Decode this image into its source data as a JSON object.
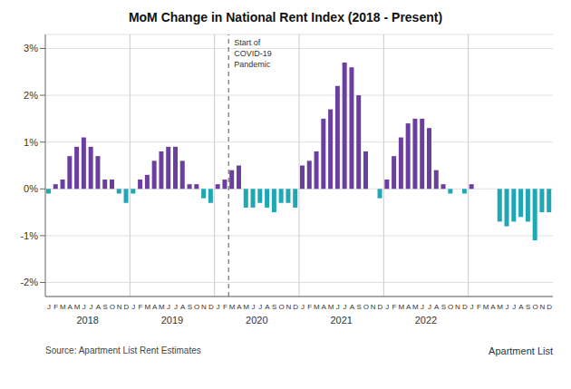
{
  "chart_data": {
    "type": "bar",
    "title": "MoM Change in National Rent Index (2018 - Present)",
    "categories": [
      "J",
      "F",
      "M",
      "A",
      "M",
      "J",
      "J",
      "A",
      "S",
      "O",
      "N",
      "D",
      "J",
      "F",
      "M",
      "A",
      "M",
      "J",
      "J",
      "A",
      "S",
      "O",
      "N",
      "D",
      "J",
      "F",
      "M",
      "A",
      "M",
      "J",
      "J",
      "A",
      "S",
      "O",
      "N",
      "D",
      "J",
      "F",
      "M",
      "A",
      "M",
      "J",
      "J",
      "A",
      "S",
      "O",
      "N",
      "D",
      "J",
      "F",
      "M",
      "A",
      "M",
      "J",
      "J",
      "A",
      "S",
      "O",
      "N",
      "D",
      "J",
      "F",
      "M",
      "A",
      "M",
      "J",
      "J",
      "A",
      "S",
      "O",
      "N",
      "D"
    ],
    "values": [
      -0.001,
      0.001,
      0.002,
      0.007,
      0.009,
      0.011,
      0.009,
      0.007,
      0.002,
      0.002,
      -0.001,
      -0.003,
      -0.001,
      0.002,
      0.003,
      0.006,
      0.008,
      0.009,
      0.009,
      0.006,
      0.001,
      0.001,
      -0.002,
      -0.003,
      0.001,
      0.002,
      0.004,
      0.005,
      -0.004,
      -0.004,
      -0.003,
      -0.004,
      -0.005,
      -0.003,
      -0.003,
      -0.004,
      0.005,
      0.006,
      0.008,
      0.015,
      0.017,
      0.022,
      0.027,
      0.026,
      0.02,
      0.008,
      0.0,
      -0.002,
      0.002,
      0.007,
      0.011,
      0.014,
      0.015,
      0.015,
      0.013,
      0.004,
      0.001,
      -0.001,
      0.0,
      -0.001,
      0.001,
      0.0,
      0.0,
      0.0,
      -0.007,
      -0.008,
      -0.007,
      -0.006,
      -0.007,
      -0.011,
      -0.005,
      -0.005
    ],
    "colors": [
      "#1FA8B4",
      "#6B3FA0",
      "#6B3FA0",
      "#6B3FA0",
      "#6B3FA0",
      "#6B3FA0",
      "#6B3FA0",
      "#6B3FA0",
      "#6B3FA0",
      "#6B3FA0",
      "#1FA8B4",
      "#1FA8B4",
      "#1FA8B4",
      "#6B3FA0",
      "#6B3FA0",
      "#6B3FA0",
      "#6B3FA0",
      "#6B3FA0",
      "#6B3FA0",
      "#6B3FA0",
      "#6B3FA0",
      "#6B3FA0",
      "#1FA8B4",
      "#1FA8B4",
      "#6B3FA0",
      "#6B3FA0",
      "#6B3FA0",
      "#6B3FA0",
      "#1FA8B4",
      "#1FA8B4",
      "#1FA8B4",
      "#1FA8B4",
      "#1FA8B4",
      "#1FA8B4",
      "#1FA8B4",
      "#1FA8B4",
      "#6B3FA0",
      "#6B3FA0",
      "#6B3FA0",
      "#6B3FA0",
      "#6B3FA0",
      "#6B3FA0",
      "#6B3FA0",
      "#6B3FA0",
      "#6B3FA0",
      "#6B3FA0",
      "#6B3FA0",
      "#1FA8B4",
      "#6B3FA0",
      "#6B3FA0",
      "#6B3FA0",
      "#6B3FA0",
      "#6B3FA0",
      "#6B3FA0",
      "#6B3FA0",
      "#6B3FA0",
      "#6B3FA0",
      "#1FA8B4",
      "#6B3FA0",
      "#1FA8B4",
      "#6B3FA0",
      "#6B3FA0",
      "#6B3FA0",
      "#6B3FA0",
      "#1FA8B4",
      "#1FA8B4",
      "#1FA8B4",
      "#1FA8B4",
      "#1FA8B4",
      "#1FA8B4",
      "#1FA8B4",
      "#1FA8B4"
    ],
    "ylim": [
      -0.023,
      0.033
    ],
    "yticks": [
      {
        "value": -0.02,
        "label": "-2%"
      },
      {
        "value": -0.01,
        "label": "-1%"
      },
      {
        "value": 0.0,
        "label": "0%"
      },
      {
        "value": 0.01,
        "label": "1%"
      },
      {
        "value": 0.02,
        "label": "2%"
      },
      {
        "value": 0.03,
        "label": "3%"
      }
    ],
    "grid": true,
    "annotations": [
      {
        "text": "Start of\nCOVID-19\nPandemic",
        "x": 25.5,
        "line_style": "dashed"
      },
      {
        "text": "2018",
        "x": 5.5
      },
      {
        "text": "2019",
        "x": 17.5
      },
      {
        "text": "2020",
        "x": 29.5
      },
      {
        "text": "2021",
        "x": 41.5
      },
      {
        "text": "2022",
        "x": 53.5
      },
      {
        "text": "Source: Apartment List Rent Estimates"
      },
      {
        "text": "Apartment List"
      }
    ]
  }
}
